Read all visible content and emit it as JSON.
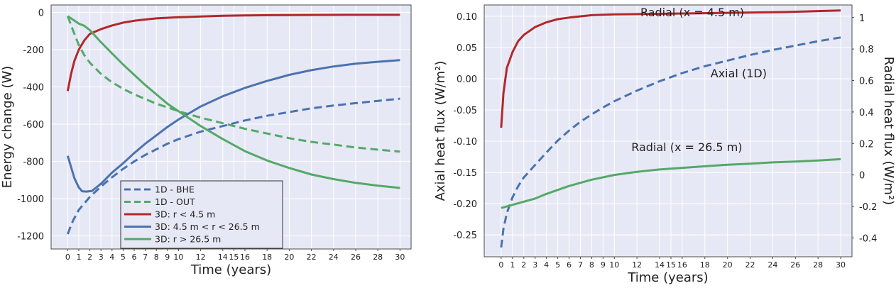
{
  "colors": {
    "plot_bg": "#e6e9f5",
    "grid": "#ffffff",
    "frame": "#4a4a4a",
    "red": "#b3272b",
    "blue": "#4c72b0",
    "green": "#55a868"
  },
  "chart_data": [
    {
      "type": "line",
      "xlabel": "Time (years)",
      "ylabel": "Energy change (W)",
      "xlim": [
        -1.5,
        31
      ],
      "ylim": [
        -1270,
        40
      ],
      "x_ticks": [
        0,
        1,
        2,
        3,
        4,
        5,
        6,
        7,
        8,
        9,
        10,
        12,
        14,
        15,
        16,
        18,
        20,
        22,
        24,
        26,
        28,
        30
      ],
      "y_ticks": [
        0,
        -200,
        -400,
        -600,
        -800,
        -1000,
        -1200
      ],
      "grid": true,
      "legend": {
        "position": "lower-center",
        "entries": [
          "1D - BHE",
          "1D - OUT",
          "3D: r < 4.5 m",
          "3D: 4.5 m < r < 26.5 m",
          "3D: r > 26.5 m"
        ]
      },
      "series": [
        {
          "name": "1D - BHE",
          "color": "blue",
          "style": "dashed",
          "points": [
            [
              0,
              -1190
            ],
            [
              0.25,
              -1150
            ],
            [
              0.5,
              -1115
            ],
            [
              1,
              -1060
            ],
            [
              1.5,
              -1025
            ],
            [
              2,
              -990
            ],
            [
              3,
              -935
            ],
            [
              4,
              -885
            ],
            [
              5,
              -840
            ],
            [
              6,
              -800
            ],
            [
              7,
              -765
            ],
            [
              8,
              -735
            ],
            [
              9,
              -705
            ],
            [
              10,
              -680
            ],
            [
              12,
              -640
            ],
            [
              14,
              -610
            ],
            [
              16,
              -580
            ],
            [
              18,
              -555
            ],
            [
              20,
              -535
            ],
            [
              22,
              -515
            ],
            [
              24,
              -500
            ],
            [
              26,
              -487
            ],
            [
              28,
              -475
            ],
            [
              30,
              -463
            ]
          ]
        },
        {
          "name": "1D - OUT",
          "color": "green",
          "style": "dashed",
          "points": [
            [
              0,
              -20
            ],
            [
              0.5,
              -100
            ],
            [
              1,
              -175
            ],
            [
              1.5,
              -230
            ],
            [
              2,
              -270
            ],
            [
              3,
              -330
            ],
            [
              4,
              -375
            ],
            [
              5,
              -410
            ],
            [
              6,
              -440
            ],
            [
              7,
              -465
            ],
            [
              8,
              -490
            ],
            [
              9,
              -510
            ],
            [
              10,
              -530
            ],
            [
              12,
              -565
            ],
            [
              14,
              -595
            ],
            [
              16,
              -625
            ],
            [
              18,
              -650
            ],
            [
              20,
              -675
            ],
            [
              22,
              -695
            ],
            [
              24,
              -710
            ],
            [
              26,
              -725
            ],
            [
              28,
              -737
            ],
            [
              30,
              -747
            ]
          ]
        },
        {
          "name": "3D: r < 4.5 m",
          "color": "red",
          "style": "solid",
          "points": [
            [
              0,
              -422
            ],
            [
              0.3,
              -330
            ],
            [
              0.6,
              -260
            ],
            [
              1,
              -200
            ],
            [
              1.5,
              -150
            ],
            [
              2,
              -115
            ],
            [
              3,
              -90
            ],
            [
              4,
              -70
            ],
            [
              5,
              -55
            ],
            [
              6,
              -45
            ],
            [
              7,
              -38
            ],
            [
              8,
              -32
            ],
            [
              10,
              -26
            ],
            [
              12,
              -22
            ],
            [
              14,
              -18
            ],
            [
              16,
              -16
            ],
            [
              20,
              -14
            ],
            [
              25,
              -13
            ],
            [
              30,
              -13
            ]
          ]
        },
        {
          "name": "3D: 4.5 m < r < 26.5 m",
          "color": "blue",
          "style": "solid",
          "points": [
            [
              0,
              -770
            ],
            [
              0.3,
              -830
            ],
            [
              0.6,
              -890
            ],
            [
              1,
              -940
            ],
            [
              1.3,
              -960
            ],
            [
              1.7,
              -962
            ],
            [
              2.2,
              -958
            ],
            [
              3,
              -920
            ],
            [
              4,
              -860
            ],
            [
              5,
              -810
            ],
            [
              6,
              -755
            ],
            [
              7,
              -705
            ],
            [
              8,
              -660
            ],
            [
              9,
              -615
            ],
            [
              10,
              -575
            ],
            [
              12,
              -505
            ],
            [
              14,
              -450
            ],
            [
              16,
              -405
            ],
            [
              18,
              -368
            ],
            [
              20,
              -335
            ],
            [
              22,
              -310
            ],
            [
              24,
              -290
            ],
            [
              26,
              -275
            ],
            [
              28,
              -265
            ],
            [
              30,
              -256
            ]
          ]
        },
        {
          "name": "3D: r > 26.5 m",
          "color": "green",
          "style": "solid",
          "points": [
            [
              0,
              -20
            ],
            [
              0.5,
              -40
            ],
            [
              1,
              -60
            ],
            [
              1.5,
              -72
            ],
            [
              2,
              -95
            ],
            [
              3,
              -160
            ],
            [
              4,
              -220
            ],
            [
              5,
              -280
            ],
            [
              6,
              -335
            ],
            [
              7,
              -390
            ],
            [
              8,
              -440
            ],
            [
              9,
              -490
            ],
            [
              10,
              -530
            ],
            [
              12,
              -610
            ],
            [
              14,
              -680
            ],
            [
              16,
              -745
            ],
            [
              18,
              -795
            ],
            [
              20,
              -835
            ],
            [
              22,
              -870
            ],
            [
              24,
              -895
            ],
            [
              26,
              -915
            ],
            [
              28,
              -930
            ],
            [
              30,
              -942
            ]
          ]
        }
      ]
    },
    {
      "type": "line",
      "xlabel": "Time (years)",
      "ylabel": "Axial heat flux  (W/m²)",
      "ylabel_right": "Radial heat flux  (W/m²)",
      "xlim": [
        -1.5,
        31
      ],
      "ylim": [
        -0.285,
        0.118
      ],
      "ylim_right": [
        -0.52,
        1.08
      ],
      "x_ticks": [
        0,
        1,
        2,
        3,
        4,
        5,
        6,
        7,
        8,
        9,
        10,
        12,
        14,
        15,
        16,
        18,
        20,
        22,
        24,
        26,
        28,
        30
      ],
      "y_ticks": [
        "0.10",
        "0.05",
        "0.00",
        "-0.05",
        "-0.10",
        "-0.15",
        "-0.20",
        "-0.25"
      ],
      "y_ticks_right": [
        "1",
        "0.8",
        "0.6",
        "0.4",
        "0.2",
        "0",
        "-0.2",
        "-0.4"
      ],
      "grid": true,
      "annotations": [
        {
          "text": "Radial (x  = 4.5 m)",
          "x": 12.3,
          "y": 0.1
        },
        {
          "text": "Axial (1D)",
          "x": 18.5,
          "y": 0.002
        },
        {
          "text": "Radial (x  = 26.5 m)",
          "x": 11.5,
          "y": -0.116
        }
      ],
      "series": [
        {
          "name": "Radial (x  = 4.5 m)",
          "axis": "right",
          "color": "red",
          "style": "solid",
          "points": [
            [
              0,
              0.3
            ],
            [
              0.2,
              0.52
            ],
            [
              0.5,
              0.68
            ],
            [
              1,
              0.78
            ],
            [
              1.5,
              0.85
            ],
            [
              2,
              0.89
            ],
            [
              3,
              0.94
            ],
            [
              4,
              0.97
            ],
            [
              5,
              0.99
            ],
            [
              6,
              1.0
            ],
            [
              8,
              1.015
            ],
            [
              10,
              1.02
            ],
            [
              15,
              1.025
            ],
            [
              20,
              1.03
            ],
            [
              25,
              1.035
            ],
            [
              30,
              1.045
            ]
          ]
        },
        {
          "name": "Axial (1D)",
          "axis": "left",
          "color": "blue",
          "style": "dashed",
          "points": [
            [
              0,
              -0.27
            ],
            [
              0.2,
              -0.24
            ],
            [
              0.5,
              -0.215
            ],
            [
              1,
              -0.19
            ],
            [
              1.5,
              -0.172
            ],
            [
              2,
              -0.158
            ],
            [
              3,
              -0.138
            ],
            [
              4,
              -0.118
            ],
            [
              5,
              -0.099
            ],
            [
              6,
              -0.083
            ],
            [
              7,
              -0.069
            ],
            [
              8,
              -0.057
            ],
            [
              9,
              -0.046
            ],
            [
              10,
              -0.036
            ],
            [
              12,
              -0.019
            ],
            [
              14,
              -0.004
            ],
            [
              16,
              0.009
            ],
            [
              18,
              0.02
            ],
            [
              20,
              0.029
            ],
            [
              22,
              0.038
            ],
            [
              24,
              0.046
            ],
            [
              26,
              0.053
            ],
            [
              28,
              0.06
            ],
            [
              30,
              0.066
            ]
          ]
        },
        {
          "name": "Radial (x  = 26.5 m)",
          "axis": "right",
          "color": "green",
          "style": "solid",
          "points": [
            [
              0,
              -0.21
            ],
            [
              1,
              -0.19
            ],
            [
              2,
              -0.17
            ],
            [
              3,
              -0.15
            ],
            [
              4,
              -0.12
            ],
            [
              6,
              -0.07
            ],
            [
              8,
              -0.03
            ],
            [
              10,
              0.0
            ],
            [
              12,
              0.02
            ],
            [
              14,
              0.035
            ],
            [
              16,
              0.045
            ],
            [
              18,
              0.055
            ],
            [
              20,
              0.065
            ],
            [
              22,
              0.072
            ],
            [
              24,
              0.08
            ],
            [
              26,
              0.085
            ],
            [
              28,
              0.092
            ],
            [
              30,
              0.1
            ]
          ]
        }
      ]
    }
  ]
}
